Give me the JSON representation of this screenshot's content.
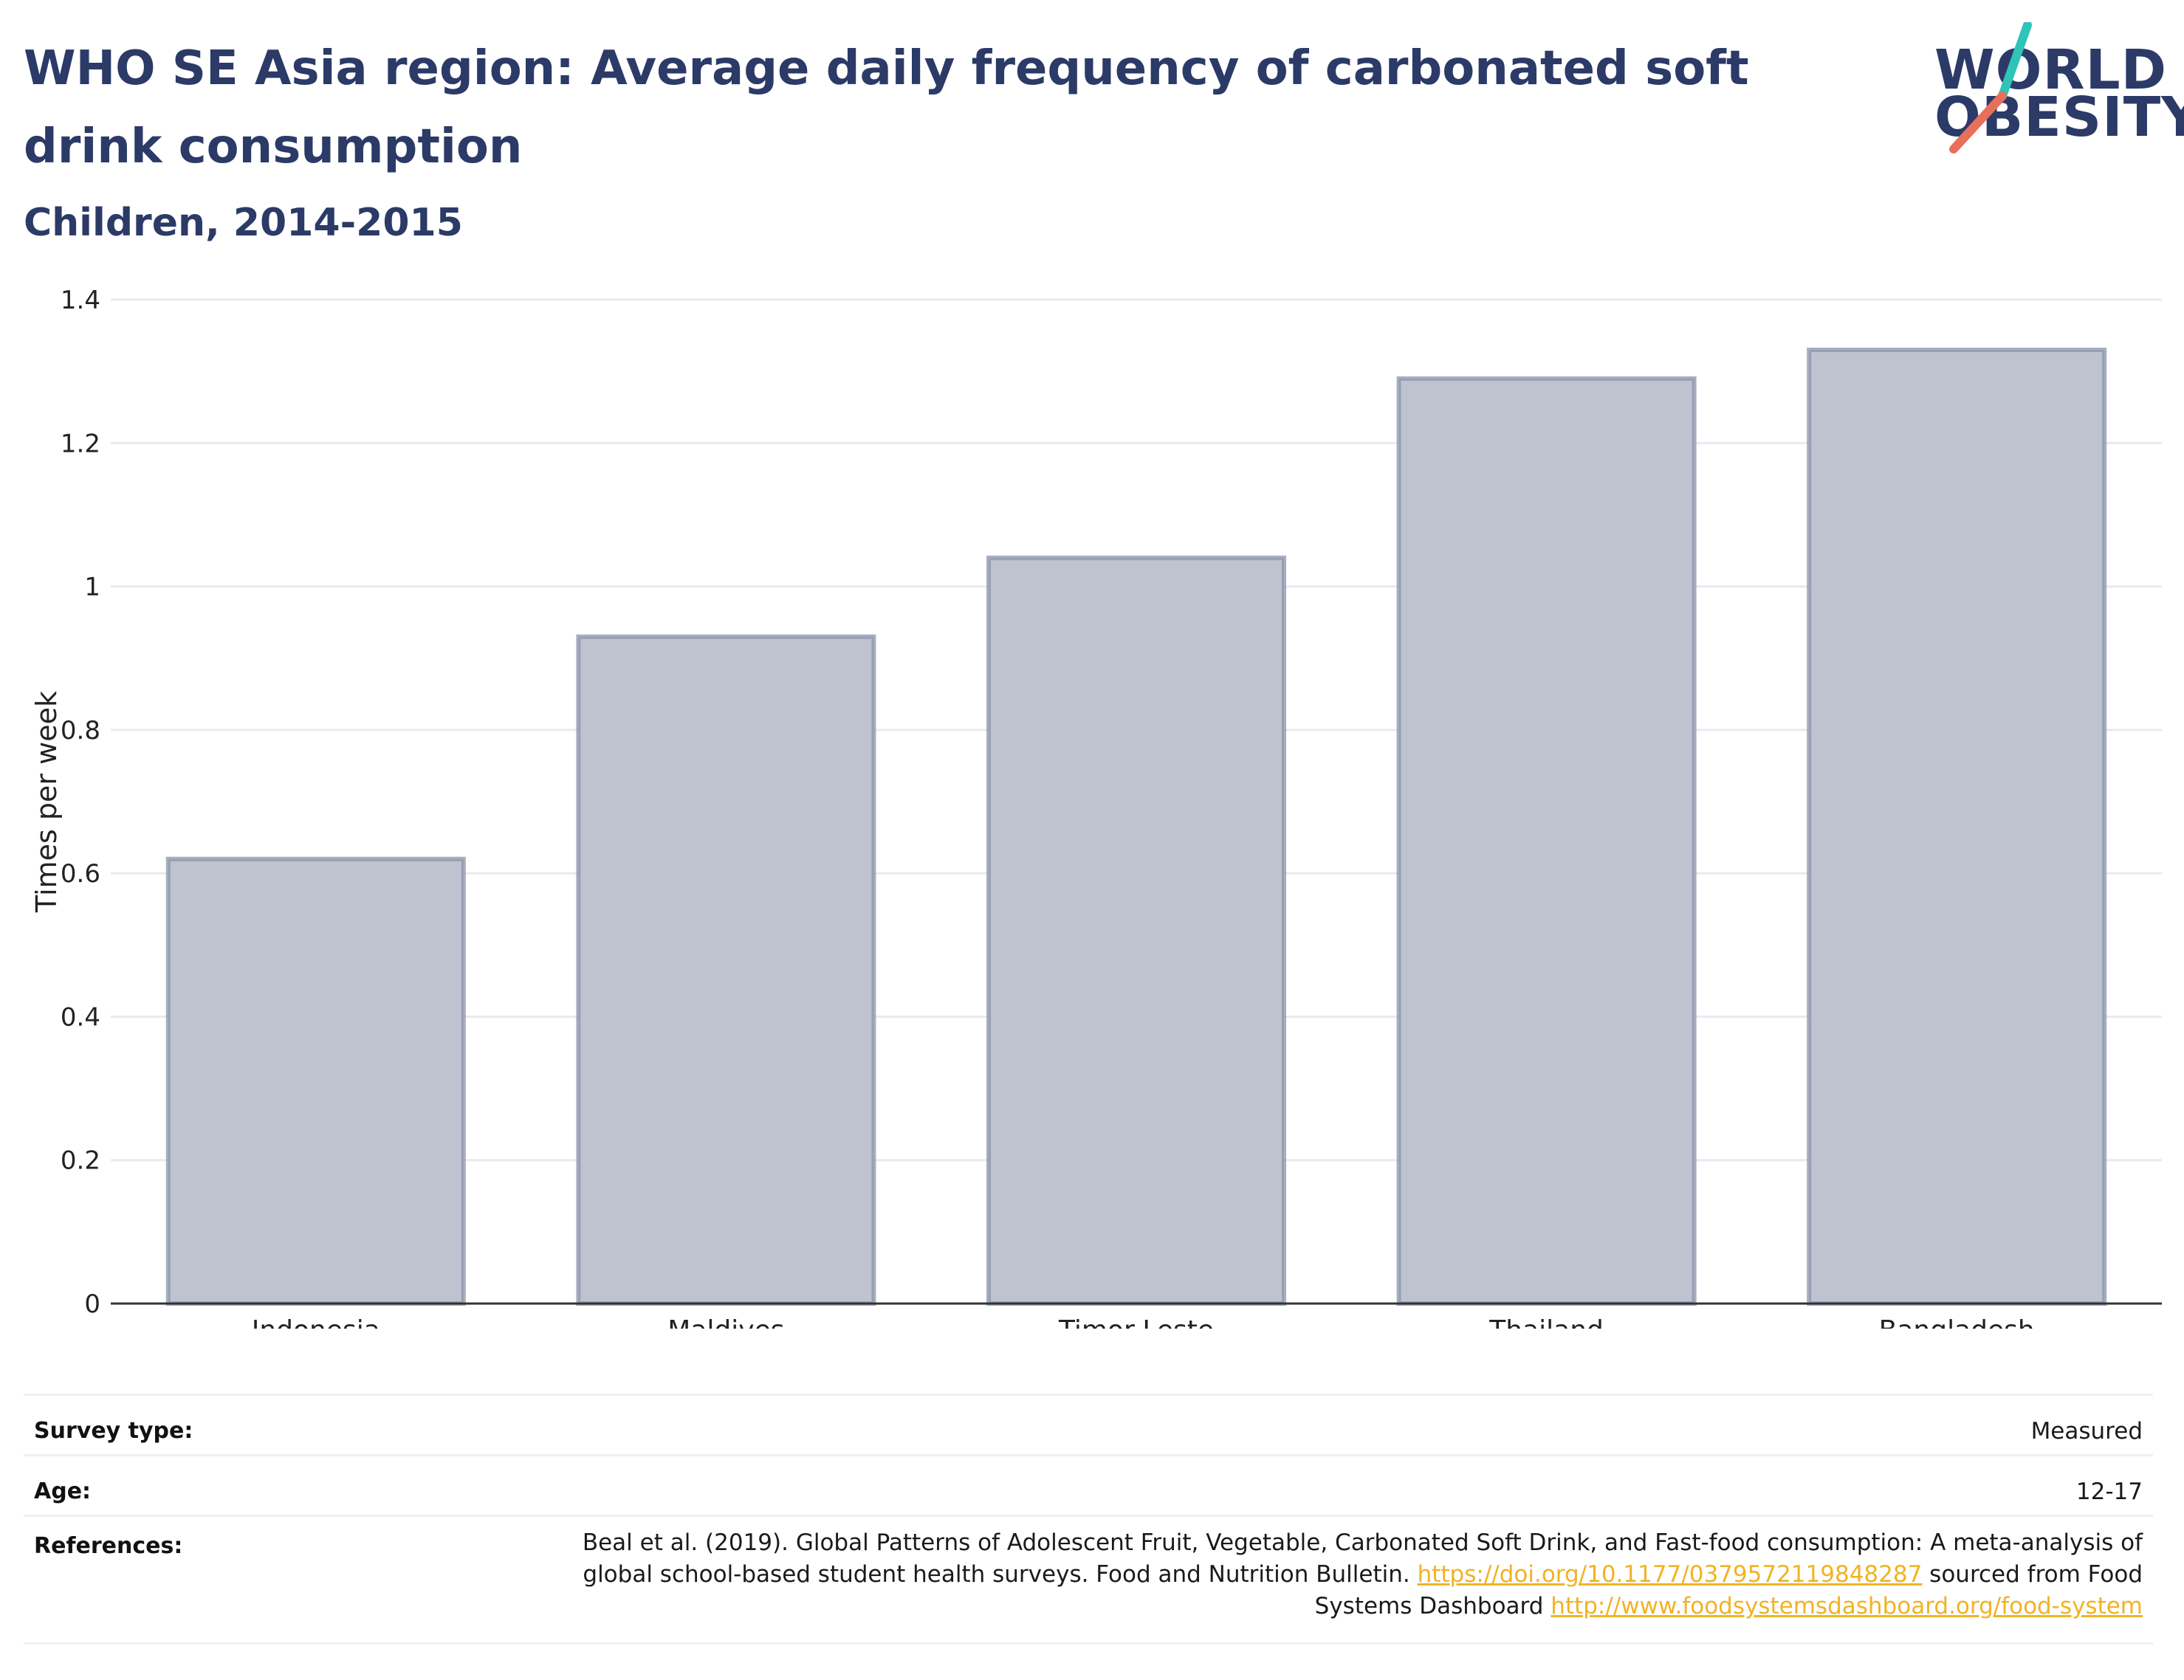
{
  "header": {
    "title": "WHO SE Asia region: Average daily frequency of carbonated soft drink consumption",
    "subtitle": "Children, 2014-2015"
  },
  "logo": {
    "line1": "WORLD",
    "line2": "OBESITY",
    "accent_teal": "#2ec4b6",
    "accent_coral": "#e8705a"
  },
  "chart_data": {
    "type": "bar",
    "categories": [
      "Indonesia",
      "Maldives",
      "Timor-Leste",
      "Thailand",
      "Bangladesh"
    ],
    "values": [
      0.62,
      0.93,
      1.04,
      1.29,
      1.33
    ],
    "ylabel": "Times per week",
    "ylim": [
      0,
      1.4
    ],
    "yticks": [
      0,
      0.2,
      0.4,
      0.6,
      0.8,
      1,
      1.2,
      1.4
    ],
    "ytick_labels": [
      "0",
      "0.2",
      "0.4",
      "0.6",
      "0.8",
      "1",
      "1.2",
      "1.4"
    ],
    "grid": true,
    "bar_fill": "#bfc3cf",
    "bar_edge": "#8a93aa"
  },
  "meta": {
    "survey_label": "Survey type:",
    "survey_value": "Measured",
    "age_label": "Age:",
    "age_value": "12-17",
    "references_label": "References:",
    "ref_text_1": "Beal et al. (2019). Global Patterns of Adolescent Fruit, Vegetable, Carbonated Soft Drink, and Fast-food consumption: A meta-analysis of global school-based student health surveys. Food and Nutrition Bulletin. ",
    "ref_link_1": "https://doi.org/10.1177/0379572119848287",
    "ref_text_2": " sourced from Food Systems Dashboard ",
    "ref_link_2": "http://www.foodsystemsdashboard.org/food-system"
  }
}
